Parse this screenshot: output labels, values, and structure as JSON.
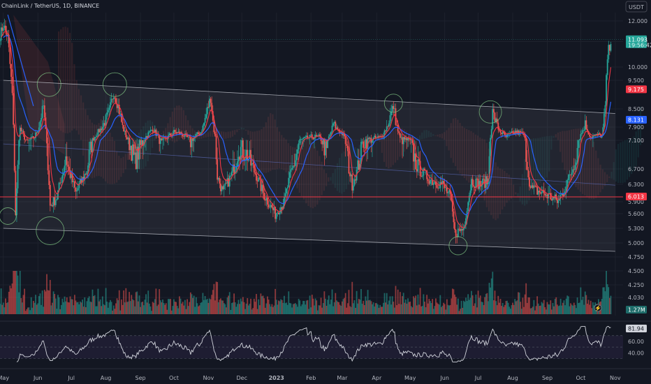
{
  "header": {
    "title": "ChainLink / TetherUS, 1D, BINANCE",
    "currency": "USDT"
  },
  "colors": {
    "background": "#131722",
    "up": "#26a69a",
    "down": "#ef5350",
    "ema_fast": "#f23645",
    "ema_slow": "#2962ff",
    "channel": "#d1d4dc",
    "support": "#f23645",
    "rsi": "#d1d4dc"
  },
  "chart_data": [
    {
      "type": "candlestick",
      "title": "ChainLink / TetherUS, 1D, BINANCE",
      "y_ticks": [
        "12.000",
        "11.000",
        "10.000",
        "9.500",
        "8.500",
        "7.900",
        "7.100",
        "6.700",
        "6.300",
        "5.900",
        "5.600",
        "5.300",
        "5.000",
        "4.750",
        "4.500",
        "4.250",
        "4.030"
      ],
      "ylim": [
        3.85,
        12.6
      ],
      "x_ticks": [
        "May",
        "Jun",
        "Jul",
        "Aug",
        "Sep",
        "Oct",
        "Nov",
        "Dec",
        "2023",
        "Feb",
        "Mar",
        "Apr",
        "May",
        "Jun",
        "Jul",
        "Aug",
        "Sep",
        "Oct",
        "Nov"
      ],
      "x_range": [
        "2022-04-28",
        "2023-11-08"
      ],
      "price_anchors": [
        [
          "2022-04-28",
          11.3
        ],
        [
          "2022-05-01",
          11.8
        ],
        [
          "2022-05-05",
          11.2
        ],
        [
          "2022-05-09",
          9.0
        ],
        [
          "2022-05-12",
          5.6
        ],
        [
          "2022-05-16",
          7.8
        ],
        [
          "2022-05-22",
          7.0
        ],
        [
          "2022-05-29",
          7.3
        ],
        [
          "2022-06-06",
          8.6
        ],
        [
          "2022-06-12",
          5.8
        ],
        [
          "2022-06-18",
          6.0
        ],
        [
          "2022-06-26",
          6.9
        ],
        [
          "2022-07-05",
          6.1
        ],
        [
          "2022-07-14",
          6.6
        ],
        [
          "2022-07-25",
          7.6
        ],
        [
          "2022-08-04",
          8.4
        ],
        [
          "2022-08-08",
          9.1
        ],
        [
          "2022-08-12",
          8.6
        ],
        [
          "2022-08-20",
          7.2
        ],
        [
          "2022-08-27",
          6.8
        ],
        [
          "2022-09-03",
          7.1
        ],
        [
          "2022-09-12",
          7.8
        ],
        [
          "2022-09-20",
          7.0
        ],
        [
          "2022-10-01",
          7.6
        ],
        [
          "2022-10-08",
          7.5
        ],
        [
          "2022-10-16",
          7.1
        ],
        [
          "2022-10-25",
          7.6
        ],
        [
          "2022-11-03",
          8.9
        ],
        [
          "2022-11-09",
          6.5
        ],
        [
          "2022-11-14",
          6.1
        ],
        [
          "2022-11-21",
          6.5
        ],
        [
          "2022-11-28",
          7.0
        ],
        [
          "2022-12-06",
          6.9
        ],
        [
          "2022-12-13",
          6.6
        ],
        [
          "2022-12-20",
          6.1
        ],
        [
          "2022-12-31",
          5.6
        ],
        [
          "2023-01-08",
          5.9
        ],
        [
          "2023-01-14",
          6.6
        ],
        [
          "2023-01-22",
          7.1
        ],
        [
          "2023-02-01",
          7.3
        ],
        [
          "2023-02-08",
          7.3
        ],
        [
          "2023-02-15",
          6.9
        ],
        [
          "2023-02-21",
          8.0
        ],
        [
          "2023-03-01",
          7.5
        ],
        [
          "2023-03-10",
          6.3
        ],
        [
          "2023-03-20",
          7.1
        ],
        [
          "2023-03-28",
          7.2
        ],
        [
          "2023-04-05",
          7.3
        ],
        [
          "2023-04-16",
          8.6
        ],
        [
          "2023-04-22",
          7.2
        ],
        [
          "2023-04-30",
          7.1
        ],
        [
          "2023-05-08",
          6.7
        ],
        [
          "2023-05-20",
          6.4
        ],
        [
          "2023-05-30",
          6.3
        ],
        [
          "2023-06-06",
          6.0
        ],
        [
          "2023-06-10",
          5.2
        ],
        [
          "2023-06-18",
          5.3
        ],
        [
          "2023-06-25",
          6.4
        ],
        [
          "2023-07-03",
          6.3
        ],
        [
          "2023-07-10",
          6.4
        ],
        [
          "2023-07-14",
          8.4
        ],
        [
          "2023-07-20",
          7.7
        ],
        [
          "2023-07-26",
          7.3
        ],
        [
          "2023-08-03",
          7.6
        ],
        [
          "2023-08-10",
          7.5
        ],
        [
          "2023-08-17",
          6.2
        ],
        [
          "2023-08-28",
          6.1
        ],
        [
          "2023-09-05",
          6.0
        ],
        [
          "2023-09-11",
          5.9
        ],
        [
          "2023-09-18",
          6.3
        ],
        [
          "2023-09-28",
          7.0
        ],
        [
          "2023-10-05",
          8.0
        ],
        [
          "2023-10-10",
          7.3
        ],
        [
          "2023-10-16",
          7.4
        ],
        [
          "2023-10-20",
          7.4
        ],
        [
          "2023-10-23",
          8.6
        ],
        [
          "2023-10-25",
          10.4
        ],
        [
          "2023-10-28",
          11.1
        ]
      ],
      "channel": {
        "upper": [
          [
            "2022-05-01",
            9.5
          ],
          [
            "2023-11-01",
            8.35
          ]
        ],
        "lower": [
          [
            "2022-05-01",
            5.3
          ],
          [
            "2023-11-01",
            4.85
          ]
        ],
        "midline": [
          [
            "2022-05-01",
            7.05
          ],
          [
            "2023-11-01",
            6.28
          ]
        ]
      },
      "support_line": 6.013,
      "circled_points": [
        [
          "2022-05-05",
          5.55
        ],
        [
          "2022-06-12",
          5.25
        ],
        [
          "2022-06-11",
          9.35
        ],
        [
          "2022-08-09",
          9.35
        ],
        [
          "2023-04-16",
          8.7
        ],
        [
          "2023-06-13",
          4.95
        ],
        [
          "2023-07-12",
          8.4
        ]
      ],
      "price_labels": {
        "last": "11.093",
        "countdown": "19:56:42",
        "ema_fast": "9.175",
        "ema_slow": "8.131",
        "level": "6.013"
      },
      "volume_label": "1.27M"
    },
    {
      "type": "line",
      "name": "RSI",
      "y_ticks": [
        "60.00",
        "40.00"
      ],
      "ylim": [
        22,
        88
      ],
      "band": [
        30,
        70
      ],
      "last_label": "81.94"
    }
  ]
}
